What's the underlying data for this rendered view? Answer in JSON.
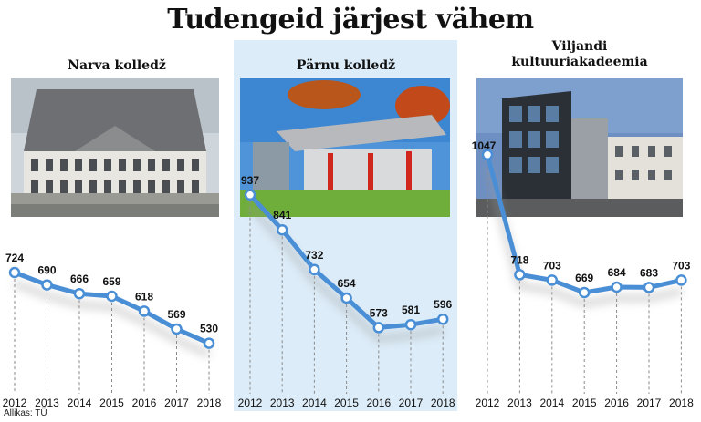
{
  "title": "Tudengeid järjest vähem",
  "source": "Allikas: TÜ",
  "colors": {
    "line": "#4a8fd6",
    "panel_highlight": "#dcecf8",
    "marker_fill": "#ffffff"
  },
  "chart_data": [
    {
      "type": "line",
      "title": "Narva kolledž",
      "x": [
        "2012",
        "2013",
        "2014",
        "2015",
        "2016",
        "2017",
        "2018"
      ],
      "series": [
        {
          "values": [
            724,
            690,
            666,
            659,
            618,
            569,
            530
          ]
        }
      ]
    },
    {
      "type": "line",
      "title": "Pärnu kolledž",
      "x": [
        "2012",
        "2013",
        "2014",
        "2015",
        "2016",
        "2017",
        "2018"
      ],
      "series": [
        {
          "values": [
            937,
            841,
            732,
            654,
            573,
            581,
            596
          ]
        }
      ]
    },
    {
      "type": "line",
      "title": "Viljandi kultuuriakadeemia",
      "x": [
        "2012",
        "2013",
        "2014",
        "2015",
        "2016",
        "2017",
        "2018"
      ],
      "series": [
        {
          "values": [
            1047,
            718,
            703,
            669,
            684,
            683,
            703
          ]
        }
      ]
    }
  ]
}
